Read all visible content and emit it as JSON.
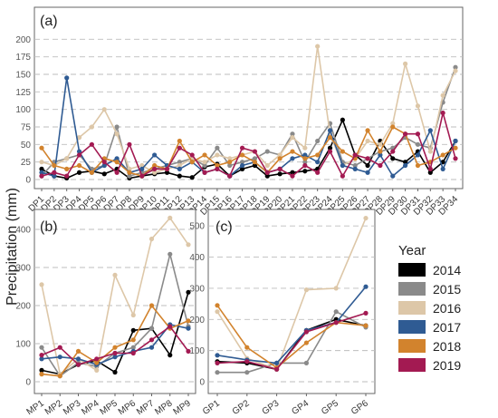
{
  "ylabel": "Precipitation (mm)",
  "legend": {
    "title": "Year",
    "items": [
      {
        "label": "2014",
        "color": "#000000"
      },
      {
        "label": "2015",
        "color": "#8a8a8a"
      },
      {
        "label": "2016",
        "color": "#ddc7a8"
      },
      {
        "label": "2017",
        "color": "#2f5b93"
      },
      {
        "label": "2018",
        "color": "#d2832d"
      },
      {
        "label": "2019",
        "color": "#a31a52"
      }
    ]
  },
  "chart_data": [
    {
      "type": "line",
      "panel_label": "(a)",
      "ylim": [
        0,
        225
      ],
      "yticks": [
        "0",
        "25",
        "50",
        "75",
        "100",
        "125",
        "150",
        "175",
        "200"
      ],
      "categories": [
        "DP1",
        "DP2",
        "DP3",
        "DP4",
        "DP5",
        "DP6",
        "DP7",
        "DP8",
        "DP9",
        "DP10",
        "DP11",
        "DP12",
        "DP13",
        "DP14",
        "DP15",
        "DP16",
        "DP17",
        "DP18",
        "DP19",
        "DP20",
        "DP21",
        "DP22",
        "DP23",
        "DP24",
        "DP25",
        "DP26",
        "DP27",
        "DP28",
        "DP29",
        "DP30",
        "DP31",
        "DP32",
        "DP33",
        "DP34"
      ],
      "series": [
        {
          "name": "2014",
          "color": "#000000",
          "values": [
            15,
            5,
            2,
            10,
            12,
            8,
            15,
            2,
            5,
            8,
            10,
            5,
            3,
            18,
            22,
            5,
            15,
            20,
            5,
            8,
            10,
            12,
            15,
            45,
            85,
            35,
            20,
            55,
            30,
            25,
            40,
            10,
            25,
            55
          ]
        },
        {
          "name": "2015",
          "color": "#8a8a8a",
          "values": [
            5,
            25,
            30,
            35,
            15,
            20,
            75,
            5,
            10,
            15,
            20,
            25,
            30,
            20,
            45,
            20,
            25,
            30,
            40,
            35,
            65,
            25,
            55,
            80,
            25,
            20,
            30,
            40,
            45,
            60,
            50,
            45,
            110,
            160
          ]
        },
        {
          "name": "2016",
          "color": "#ddc7a8",
          "values": [
            25,
            20,
            30,
            60,
            75,
            100,
            65,
            15,
            20,
            10,
            15,
            20,
            30,
            25,
            35,
            30,
            35,
            40,
            20,
            35,
            60,
            45,
            190,
            65,
            20,
            30,
            55,
            50,
            80,
            165,
            105,
            40,
            120,
            155
          ]
        },
        {
          "name": "2017",
          "color": "#2f5b93",
          "values": [
            10,
            5,
            145,
            40,
            10,
            20,
            30,
            10,
            15,
            35,
            20,
            15,
            25,
            10,
            15,
            5,
            20,
            25,
            10,
            15,
            30,
            35,
            25,
            70,
            20,
            15,
            10,
            35,
            5,
            20,
            35,
            70,
            15,
            55
          ]
        },
        {
          "name": "2018",
          "color": "#d2832d",
          "values": [
            45,
            20,
            15,
            20,
            10,
            30,
            25,
            10,
            5,
            20,
            15,
            55,
            25,
            35,
            20,
            25,
            35,
            25,
            10,
            30,
            40,
            30,
            35,
            60,
            40,
            30,
            70,
            40,
            75,
            65,
            20,
            25,
            35,
            45
          ]
        },
        {
          "name": "2019",
          "color": "#a31a52",
          "values": [
            5,
            10,
            5,
            35,
            50,
            25,
            10,
            50,
            5,
            15,
            15,
            45,
            35,
            10,
            15,
            5,
            45,
            40,
            10,
            15,
            5,
            20,
            10,
            40,
            5,
            35,
            30,
            20,
            40,
            65,
            65,
            15,
            95,
            30
          ]
        }
      ]
    },
    {
      "type": "line",
      "panel_label": "(b)",
      "ylim": [
        0,
        450
      ],
      "yticks": [
        "0",
        "100",
        "200",
        "300",
        "400"
      ],
      "categories": [
        "MP1",
        "MP2",
        "MP3",
        "MP4",
        "MP5",
        "MP6",
        "MP7",
        "MP8",
        "MP9"
      ],
      "series": [
        {
          "name": "2014",
          "color": "#000000",
          "values": [
            30,
            20,
            45,
            55,
            25,
            135,
            140,
            70,
            235
          ]
        },
        {
          "name": "2015",
          "color": "#8a8a8a",
          "values": [
            90,
            15,
            50,
            40,
            75,
            90,
            140,
            335,
            145
          ]
        },
        {
          "name": "2016",
          "color": "#ddc7a8",
          "values": [
            255,
            20,
            60,
            30,
            280,
            175,
            375,
            430,
            360
          ]
        },
        {
          "name": "2017",
          "color": "#2f5b93",
          "values": [
            60,
            65,
            60,
            45,
            65,
            80,
            90,
            150,
            140
          ]
        },
        {
          "name": "2018",
          "color": "#d2832d",
          "values": [
            20,
            15,
            80,
            50,
            90,
            110,
            200,
            140,
            160
          ]
        },
        {
          "name": "2019",
          "color": "#a31a52",
          "values": [
            70,
            90,
            45,
            60,
            75,
            75,
            110,
            145,
            80
          ]
        }
      ]
    },
    {
      "type": "line",
      "panel_label": "(c)",
      "ylim": [
        0,
        550
      ],
      "yticks": [
        "0",
        "100",
        "200",
        "300",
        "400",
        "500"
      ],
      "categories": [
        "GP1",
        "GP2",
        "GP3",
        "GP4",
        "GP5",
        "GP6"
      ],
      "series": [
        {
          "name": "2014",
          "color": "#000000",
          "values": [
            65,
            60,
            40,
            165,
            200,
            180
          ]
        },
        {
          "name": "2015",
          "color": "#8a8a8a",
          "values": [
            30,
            30,
            60,
            60,
            225,
            175
          ]
        },
        {
          "name": "2016",
          "color": "#ddc7a8",
          "values": [
            225,
            75,
            40,
            295,
            300,
            525
          ]
        },
        {
          "name": "2017",
          "color": "#2f5b93",
          "values": [
            85,
            70,
            60,
            165,
            190,
            305
          ]
        },
        {
          "name": "2018",
          "color": "#d2832d",
          "values": [
            245,
            110,
            45,
            125,
            190,
            180
          ]
        },
        {
          "name": "2019",
          "color": "#a31a52",
          "values": [
            60,
            65,
            40,
            160,
            190,
            220
          ]
        }
      ]
    }
  ]
}
